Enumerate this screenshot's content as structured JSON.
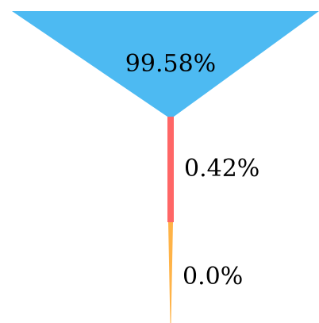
{
  "chart_data": {
    "type": "funnel",
    "title": "",
    "xlabel": "",
    "ylabel": "",
    "values": [
      99.58,
      0.42,
      0.0
    ],
    "labels": [
      "99.58%",
      "0.42%",
      "0.0%"
    ],
    "colors": [
      "#4dbaf2",
      "#ff6666",
      "#ffb347"
    ]
  }
}
